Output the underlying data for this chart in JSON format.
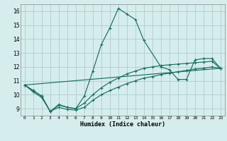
{
  "xlabel": "Humidex (Indice chaleur)",
  "bg_color": "#d6eded",
  "grid_color": "#aacfcf",
  "line_color": "#1a7060",
  "xlim": [
    -0.5,
    23.5
  ],
  "ylim": [
    8.5,
    16.5
  ],
  "xticks": [
    0,
    1,
    2,
    3,
    4,
    5,
    6,
    7,
    8,
    9,
    10,
    11,
    12,
    13,
    14,
    15,
    16,
    17,
    18,
    19,
    20,
    21,
    22,
    23
  ],
  "yticks": [
    9,
    10,
    11,
    12,
    13,
    14,
    15,
    16
  ],
  "line1_x": [
    0,
    1,
    2,
    3,
    4,
    5,
    6,
    7,
    8,
    9,
    10,
    11,
    12,
    13,
    14,
    16,
    17,
    18,
    19,
    20,
    21,
    22,
    23
  ],
  "line1_y": [
    10.7,
    10.3,
    9.9,
    8.8,
    9.3,
    9.1,
    9.0,
    9.9,
    11.7,
    13.6,
    14.8,
    16.2,
    15.8,
    15.4,
    13.9,
    12.0,
    11.8,
    11.1,
    11.1,
    12.5,
    12.6,
    12.6,
    11.9
  ],
  "line2_x": [
    0,
    1,
    2,
    3,
    4,
    5,
    6,
    7,
    8,
    9,
    10,
    11,
    12,
    13,
    14,
    15,
    16,
    17,
    18,
    19,
    20,
    21,
    22,
    23
  ],
  "line2_y": [
    10.7,
    10.3,
    9.9,
    8.8,
    9.25,
    9.1,
    9.0,
    9.4,
    10.0,
    10.5,
    10.9,
    11.2,
    11.5,
    11.7,
    11.9,
    12.0,
    12.1,
    12.15,
    12.2,
    12.25,
    12.3,
    12.35,
    12.4,
    11.9
  ],
  "line3_x": [
    0,
    23
  ],
  "line3_y": [
    10.7,
    11.9
  ],
  "line4_x": [
    0,
    1,
    2,
    3,
    4,
    5,
    6,
    7,
    8,
    9,
    10,
    11,
    12,
    13,
    14,
    15,
    16,
    17,
    18,
    19,
    20,
    21,
    22,
    23
  ],
  "line4_y": [
    10.7,
    10.2,
    9.8,
    8.8,
    9.1,
    8.95,
    8.9,
    9.1,
    9.6,
    10.0,
    10.3,
    10.55,
    10.8,
    11.0,
    11.2,
    11.3,
    11.45,
    11.55,
    11.65,
    11.75,
    11.85,
    11.9,
    12.0,
    11.9
  ]
}
